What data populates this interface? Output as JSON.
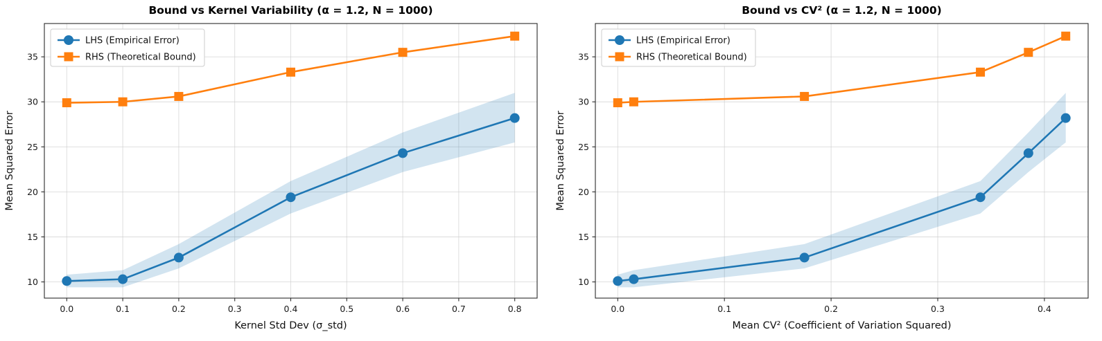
{
  "figure": {
    "background": "#ffffff"
  },
  "chart_data": [
    {
      "type": "line",
      "title": "Bound vs Kernel Variability (α = 1.2, N = 1000)",
      "xlabel": "Kernel Std Dev (σ_std)",
      "ylabel": "Mean Squared Error",
      "x": [
        0.0,
        0.1,
        0.2,
        0.4,
        0.6,
        0.8
      ],
      "xlim": [
        -0.04,
        0.84
      ],
      "ylim": [
        8.2,
        38.7
      ],
      "xticks": [
        0.0,
        0.1,
        0.2,
        0.3,
        0.4,
        0.5,
        0.6,
        0.7,
        0.8
      ],
      "xtick_labels": [
        "0.0",
        "0.1",
        "0.2",
        "0.3",
        "0.4",
        "0.5",
        "0.6",
        "0.7",
        "0.8"
      ],
      "yticks": [
        10,
        15,
        20,
        25,
        30,
        35
      ],
      "ytick_labels": [
        "10",
        "15",
        "20",
        "25",
        "30",
        "35"
      ],
      "grid": true,
      "legend_position": "upper left",
      "series": [
        {
          "name": "LHS (Empirical Error)",
          "color": "#1f77b4",
          "marker": "circle",
          "values": [
            10.1,
            10.3,
            12.7,
            19.4,
            24.3,
            28.2
          ],
          "band_lower": [
            9.4,
            9.4,
            11.5,
            17.6,
            22.2,
            25.5
          ],
          "band_upper": [
            10.8,
            11.3,
            14.2,
            21.2,
            26.6,
            31.0
          ],
          "band_color": "#1f77b4",
          "band_alpha": 0.2
        },
        {
          "name": "RHS (Theoretical Bound)",
          "color": "#ff7f0e",
          "marker": "square",
          "values": [
            29.9,
            30.0,
            30.6,
            33.3,
            35.5,
            37.3
          ]
        }
      ]
    },
    {
      "type": "line",
      "title": "Bound vs CV² (α = 1.2, N = 1000)",
      "xlabel": "Mean CV² (Coefficient of Variation Squared)",
      "ylabel": "Mean Squared Error",
      "x": [
        0.0,
        0.015,
        0.175,
        0.34,
        0.385,
        0.42
      ],
      "xlim": [
        -0.021,
        0.441
      ],
      "ylim": [
        8.2,
        38.7
      ],
      "xticks": [
        0.0,
        0.1,
        0.2,
        0.3,
        0.4
      ],
      "xtick_labels": [
        "0.0",
        "0.1",
        "0.2",
        "0.3",
        "0.4"
      ],
      "yticks": [
        10,
        15,
        20,
        25,
        30,
        35
      ],
      "ytick_labels": [
        "10",
        "15",
        "20",
        "25",
        "30",
        "35"
      ],
      "grid": true,
      "legend_position": "upper left",
      "series": [
        {
          "name": "LHS (Empirical Error)",
          "color": "#1f77b4",
          "marker": "circle",
          "values": [
            10.1,
            10.3,
            12.7,
            19.4,
            24.3,
            28.2
          ],
          "band_lower": [
            9.4,
            9.4,
            11.5,
            17.6,
            22.2,
            25.5
          ],
          "band_upper": [
            10.8,
            11.3,
            14.2,
            21.2,
            26.6,
            31.0
          ],
          "band_color": "#1f77b4",
          "band_alpha": 0.2
        },
        {
          "name": "RHS (Theoretical Bound)",
          "color": "#ff7f0e",
          "marker": "square",
          "values": [
            29.9,
            30.0,
            30.6,
            33.3,
            35.5,
            37.3
          ]
        }
      ]
    }
  ]
}
